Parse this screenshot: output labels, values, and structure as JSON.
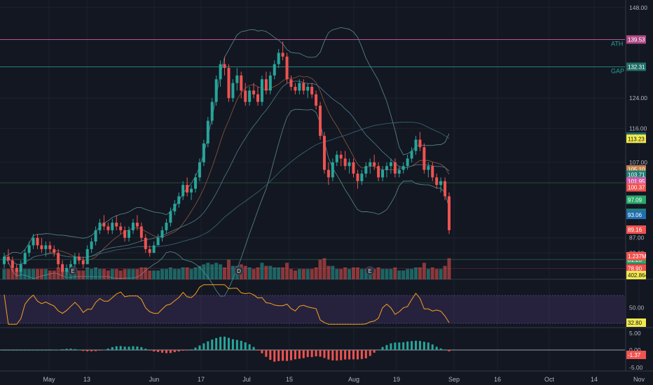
{
  "theme": {
    "background": "#131722",
    "up": "#26a69a",
    "down": "#ef5350",
    "volume_up": "#26a69a",
    "volume_down": "#ef5350",
    "rsi_line": "#f7a21b",
    "rsi_band": "#7e57c2",
    "hist_up": "#26a69a",
    "hist_down": "#ef5350",
    "ma_color": "#4f7d8c",
    "bb_color": "#5a8a8f",
    "ath_color": "#d35ba6",
    "gap_color": "#26a69a"
  },
  "chart_data": {
    "type": "candlestick",
    "x_ticks": [
      "May",
      "13",
      "Jun",
      "17",
      "Jul",
      "15",
      "Aug",
      "19",
      "Sep",
      "16",
      "Oct",
      "14",
      "Nov"
    ],
    "price_ticks": [
      "148.00",
      "124.00",
      "116.00",
      "107.00",
      "87.00",
      "83.00"
    ],
    "levels": {
      "ath": {
        "label": "ATH",
        "value": "139.53"
      },
      "gap": {
        "label": "GAP",
        "value": "132.31"
      }
    },
    "price_tags": [
      {
        "value": "139.53",
        "color": "#b04a86"
      },
      {
        "value": "132.31",
        "color": "#1f6f68"
      },
      {
        "value": "113.80",
        "color": "#1f6f68"
      },
      {
        "value": "113.23",
        "color": "#f2e94e",
        "text": "#131722"
      },
      {
        "value": "105.10",
        "color": "#c4834e"
      },
      {
        "value": "103.71",
        "color": "#1f7f75"
      },
      {
        "value": "101.58",
        "color": "#2ea868"
      },
      {
        "value": "101.95",
        "color": "#d35ba6"
      },
      {
        "value": "100.37",
        "color": "#ef5350"
      },
      {
        "value": "97.09",
        "color": "#29a86b"
      },
      {
        "value": "93.62",
        "color": "#1f7f75"
      },
      {
        "value": "93.06",
        "color": "#1f6fb0"
      },
      {
        "value": "89.16",
        "color": "#ef5350"
      },
      {
        "value": "81.96",
        "color": "#f2e94e",
        "text": "#131722"
      },
      {
        "value": "81.23",
        "color": "#2ea868"
      },
      {
        "value": "1.237M",
        "color": "#ef5350"
      },
      {
        "value": "78.90",
        "color": "#ef5350"
      },
      {
        "value": "402.864K",
        "color": "#f2e94e",
        "text": "#131722"
      }
    ],
    "candles": [
      [
        80,
        83,
        79,
        82
      ],
      [
        82,
        84,
        80,
        81
      ],
      [
        81,
        82,
        78,
        79
      ],
      [
        79,
        80,
        77,
        78
      ],
      [
        78,
        81,
        77,
        80
      ],
      [
        80,
        84,
        80,
        83
      ],
      [
        83,
        86,
        82,
        85
      ],
      [
        85,
        88,
        84,
        87
      ],
      [
        87,
        88,
        84,
        85
      ],
      [
        85,
        87,
        83,
        84
      ],
      [
        84,
        86,
        82,
        85
      ],
      [
        85,
        86,
        83,
        84
      ],
      [
        84,
        85,
        82,
        83
      ],
      [
        83,
        84,
        79,
        80
      ],
      [
        80,
        81,
        77,
        78
      ],
      [
        78,
        80,
        77,
        79
      ],
      [
        79,
        81,
        78,
        80
      ],
      [
        80,
        83,
        79,
        82
      ],
      [
        82,
        83,
        80,
        81
      ],
      [
        81,
        82,
        79,
        80
      ],
      [
        80,
        85,
        80,
        84
      ],
      [
        84,
        87,
        83,
        86
      ],
      [
        86,
        90,
        85,
        89
      ],
      [
        89,
        92,
        88,
        91
      ],
      [
        91,
        93,
        89,
        90
      ],
      [
        90,
        91,
        88,
        89
      ],
      [
        89,
        92,
        88,
        91
      ],
      [
        91,
        93,
        89,
        90
      ],
      [
        90,
        91,
        88,
        89
      ],
      [
        89,
        90,
        86,
        87
      ],
      [
        87,
        90,
        86,
        89
      ],
      [
        89,
        92,
        88,
        91
      ],
      [
        91,
        93,
        89,
        90
      ],
      [
        90,
        91,
        86,
        87
      ],
      [
        87,
        88,
        83,
        84
      ],
      [
        84,
        85,
        82,
        83
      ],
      [
        83,
        86,
        83,
        85
      ],
      [
        85,
        88,
        85,
        87
      ],
      [
        87,
        90,
        86,
        89
      ],
      [
        89,
        92,
        88,
        91
      ],
      [
        91,
        95,
        90,
        94
      ],
      [
        94,
        97,
        93,
        96
      ],
      [
        96,
        99,
        95,
        98
      ],
      [
        98,
        102,
        97,
        101
      ],
      [
        101,
        103,
        98,
        99
      ],
      [
        99,
        101,
        97,
        100
      ],
      [
        100,
        104,
        99,
        103
      ],
      [
        103,
        108,
        102,
        107
      ],
      [
        107,
        113,
        106,
        112
      ],
      [
        112,
        119,
        111,
        118
      ],
      [
        118,
        124,
        117,
        123
      ],
      [
        123,
        130,
        122,
        129
      ],
      [
        129,
        134,
        127,
        133
      ],
      [
        133,
        135,
        130,
        132
      ],
      [
        132,
        133,
        123,
        124
      ],
      [
        124,
        129,
        123,
        128
      ],
      [
        128,
        132,
        126,
        130
      ],
      [
        130,
        131,
        124,
        126
      ],
      [
        126,
        128,
        122,
        123
      ],
      [
        123,
        127,
        122,
        126
      ],
      [
        126,
        128,
        124,
        125
      ],
      [
        125,
        127,
        122,
        123
      ],
      [
        123,
        130,
        122,
        129
      ],
      [
        129,
        131,
        125,
        126
      ],
      [
        126,
        131,
        125,
        130
      ],
      [
        130,
        134,
        129,
        133
      ],
      [
        133,
        137,
        132,
        136
      ],
      [
        136,
        139,
        134,
        135
      ],
      [
        135,
        136,
        128,
        129
      ],
      [
        129,
        130,
        126,
        127
      ],
      [
        127,
        128,
        125,
        126
      ],
      [
        126,
        129,
        125,
        128
      ],
      [
        128,
        129,
        125,
        126
      ],
      [
        126,
        128,
        124,
        127
      ],
      [
        127,
        128,
        124,
        125
      ],
      [
        125,
        126,
        121,
        122
      ],
      [
        122,
        123,
        113,
        114
      ],
      [
        114,
        115,
        104,
        105
      ],
      [
        105,
        107,
        101,
        103
      ],
      [
        103,
        108,
        102,
        107
      ],
      [
        107,
        110,
        106,
        109
      ],
      [
        109,
        110,
        106,
        108
      ],
      [
        108,
        110,
        105,
        106
      ],
      [
        106,
        108,
        104,
        107
      ],
      [
        107,
        108,
        103,
        104
      ],
      [
        104,
        105,
        100,
        102
      ],
      [
        102,
        105,
        101,
        104
      ],
      [
        104,
        107,
        103,
        106
      ],
      [
        106,
        108,
        104,
        107
      ],
      [
        107,
        109,
        105,
        106
      ],
      [
        106,
        107,
        102,
        103
      ],
      [
        103,
        106,
        102,
        105
      ],
      [
        105,
        107,
        103,
        106
      ],
      [
        106,
        108,
        104,
        107
      ],
      [
        107,
        108,
        103,
        104
      ],
      [
        104,
        106,
        103,
        105
      ],
      [
        105,
        107,
        104,
        106
      ],
      [
        106,
        109,
        105,
        108
      ],
      [
        108,
        111,
        107,
        110
      ],
      [
        110,
        114,
        109,
        113
      ],
      [
        113,
        115,
        110,
        111
      ],
      [
        111,
        112,
        104,
        105
      ],
      [
        105,
        107,
        103,
        106
      ],
      [
        106,
        107,
        102,
        103
      ],
      [
        103,
        104,
        100,
        101
      ],
      [
        101,
        103,
        99,
        102
      ],
      [
        102,
        103,
        97,
        98
      ],
      [
        98,
        99,
        88,
        89
      ]
    ],
    "volume_tags": [
      "1.237M",
      "402.864K"
    ],
    "rsi_ticks": [
      "50.00",
      "32.80"
    ],
    "macd_ticks": [
      "5.00",
      "0.00",
      "-1.37",
      "-5.00"
    ],
    "rsi_value": "32.80",
    "macd_value": "-1.37"
  }
}
